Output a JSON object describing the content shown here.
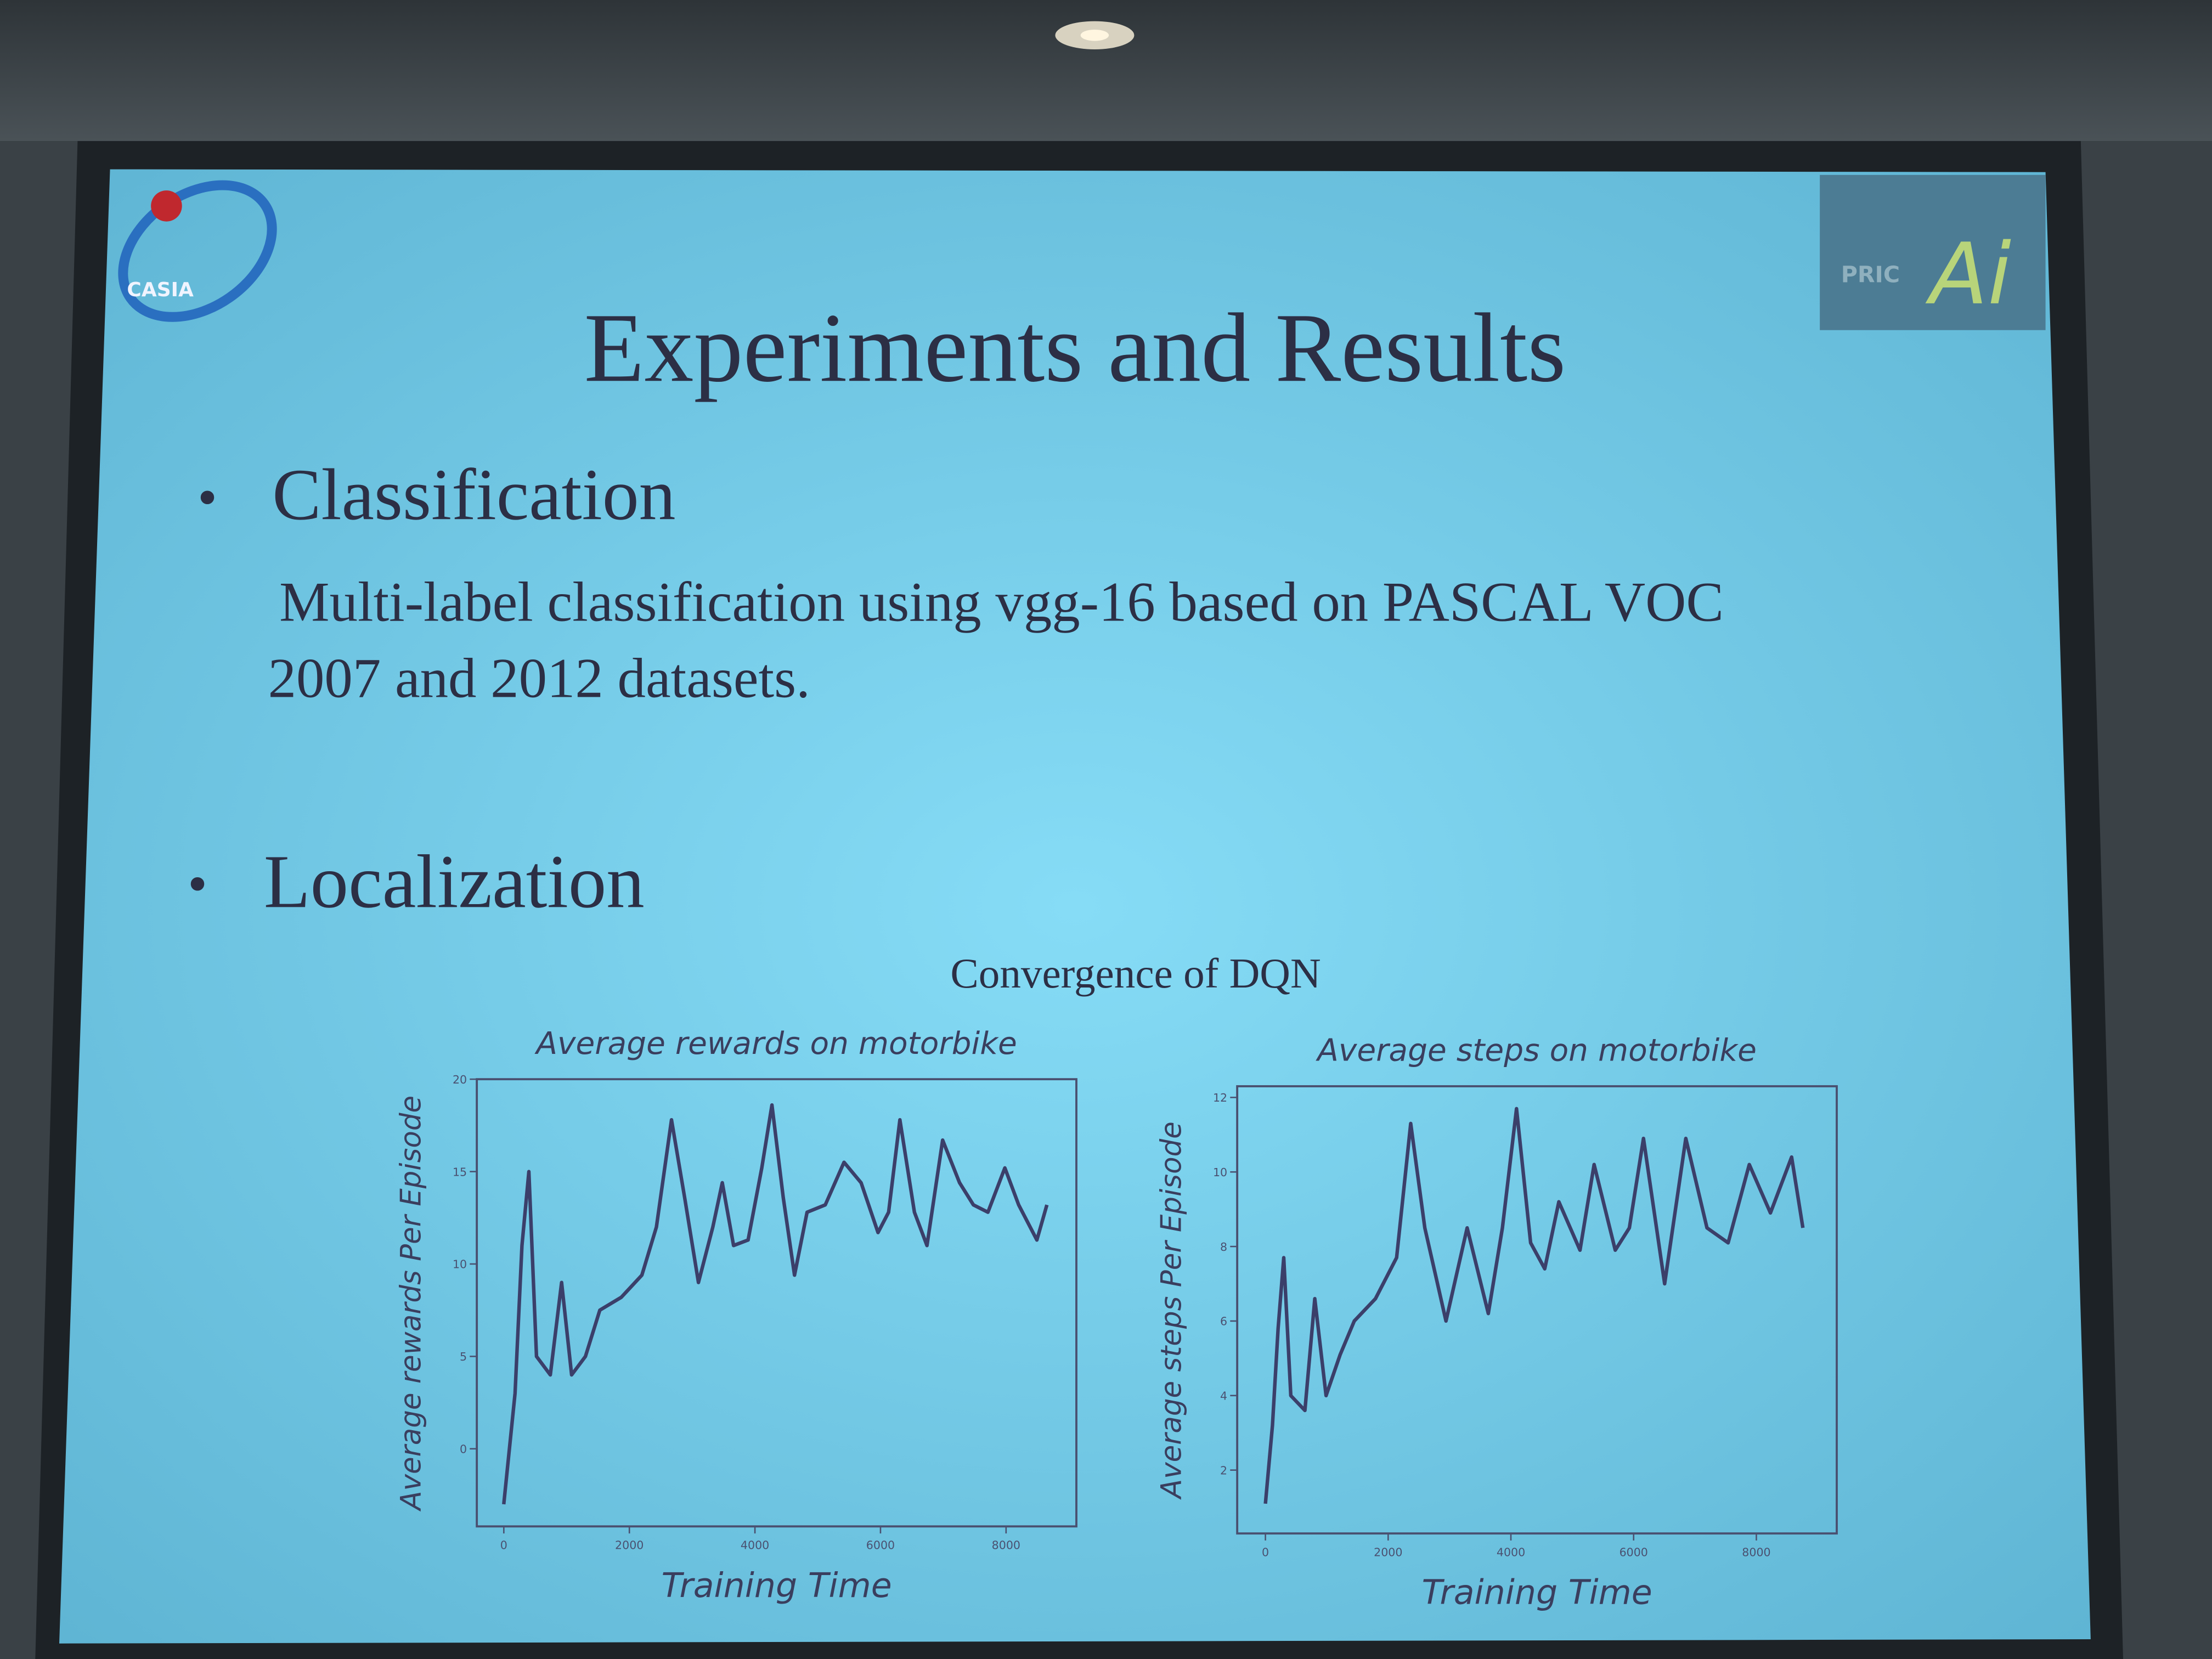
{
  "slide": {
    "title": "Experiments and Results",
    "logo_left": "CASIA",
    "logo_right": [
      "PRIC",
      "Ai"
    ],
    "bullets": [
      {
        "heading": "Classification",
        "text_lines": [
          "Multi-label classification using vgg-16 based on PASCAL VOC",
          "2007 and 2012  datasets."
        ]
      },
      {
        "heading": "Localization"
      }
    ],
    "figure_title": "Convergence of DQN"
  },
  "chart_data": [
    {
      "type": "line",
      "title": "Average rewards on motorbike",
      "x_label": "Training Time",
      "y_label": "Average rewards Per Episode",
      "x": [
        0,
        180,
        290,
        400,
        520,
        740,
        920,
        1080,
        1300,
        1530,
        1870,
        2200,
        2430,
        2670,
        2880,
        3100,
        3330,
        3480,
        3660,
        3890,
        4110,
        4270,
        4450,
        4630,
        4830,
        5120,
        5420,
        5690,
        5960,
        6130,
        6310,
        6540,
        6740,
        6990,
        7260,
        7480,
        7710,
        7980,
        8200,
        8490,
        8650
      ],
      "series": [
        {
          "color": "#3b3f6a",
          "values": [
            -3,
            3,
            11,
            15,
            5,
            4,
            9,
            4,
            5,
            7.5,
            8.2,
            9.4,
            12,
            17.8,
            13.6,
            9,
            12,
            14.4,
            11,
            11.3,
            15.2,
            18.6,
            13.6,
            9.4,
            12.8,
            13.2,
            15.5,
            14.4,
            11.7,
            12.8,
            17.8,
            12.8,
            11,
            16.7,
            14.4,
            13.2,
            12.8,
            15.2,
            13.2,
            11.3,
            13.2
          ]
        }
      ],
      "xlim": [
        -430,
        9120
      ],
      "ylim": [
        -4.2,
        20
      ],
      "xticks": [
        0,
        2000,
        4000,
        6000,
        8000
      ],
      "yticks": [
        0,
        5,
        10,
        15,
        20
      ]
    },
    {
      "type": "line",
      "title": "Average steps on motorbike",
      "x_label": "Training Time",
      "y_label": "Average steps Per Episode",
      "x": [
        0,
        115,
        207,
        299,
        414,
        644,
        805,
        989,
        1218,
        1448,
        1793,
        2138,
        2368,
        2598,
        2943,
        3287,
        3632,
        3862,
        4092,
        4322,
        4552,
        4782,
        5126,
        5356,
        5701,
        5931,
        6161,
        6506,
        6851,
        7195,
        7540,
        7885,
        8230,
        8575,
        8759
      ],
      "series": [
        {
          "color": "#3b3f6a",
          "values": [
            1.1,
            3.2,
            5.8,
            7.7,
            4,
            3.6,
            6.6,
            4,
            5.1,
            6,
            6.6,
            7.7,
            11.3,
            8.5,
            6,
            8.5,
            6.2,
            8.5,
            11.7,
            8.1,
            7.4,
            9.2,
            7.9,
            10.2,
            7.9,
            8.5,
            10.9,
            7,
            10.9,
            8.5,
            8.1,
            10.2,
            8.9,
            10.4,
            8.5
          ]
        }
      ],
      "xlim": [
        -460,
        9310
      ],
      "ylim": [
        0.3,
        12.3
      ],
      "xticks": [
        0,
        2000,
        4000,
        6000,
        8000
      ],
      "yticks": [
        2,
        4,
        6,
        8,
        10,
        12
      ]
    }
  ]
}
